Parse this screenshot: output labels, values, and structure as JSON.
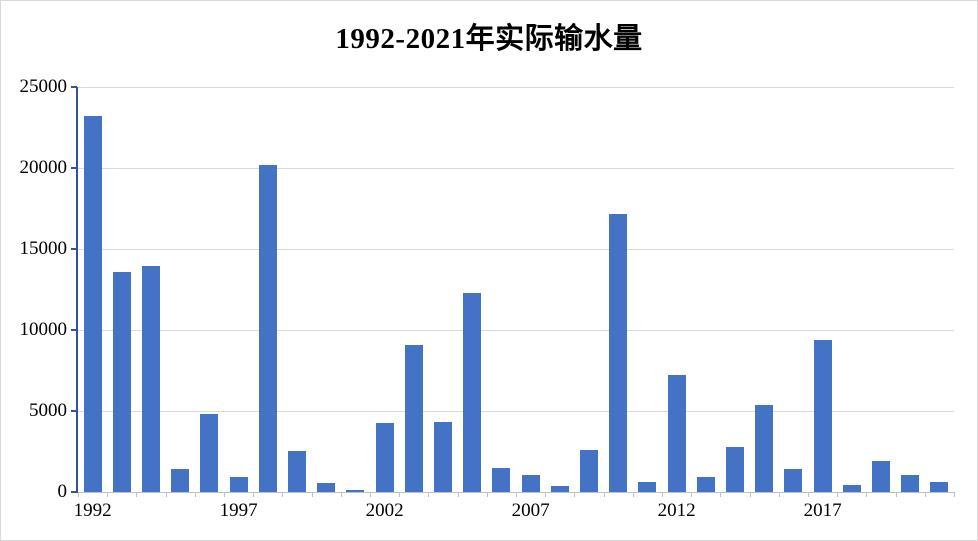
{
  "chart_data": {
    "type": "bar",
    "title": "1992-2021年实际输水量",
    "categories": [
      1992,
      1993,
      1994,
      1995,
      1996,
      1997,
      1998,
      1999,
      2000,
      2001,
      2002,
      2003,
      2004,
      2005,
      2006,
      2007,
      2008,
      2009,
      2010,
      2011,
      2012,
      2013,
      2014,
      2015,
      2016,
      2017,
      2018,
      2019,
      2020,
      2021
    ],
    "values": [
      23200,
      13600,
      13950,
      1400,
      4800,
      950,
      20200,
      2550,
      550,
      150,
      4250,
      9100,
      4300,
      12300,
      1500,
      1050,
      350,
      2600,
      17150,
      600,
      7200,
      950,
      2750,
      5350,
      1400,
      9400,
      450,
      1900,
      1050,
      600
    ],
    "xlabel": "",
    "ylabel": "",
    "ylim": [
      0,
      25000
    ],
    "ytick_interval": 5000,
    "yticks": [
      "0",
      "5000",
      "10000",
      "15000",
      "20000",
      "25000"
    ],
    "x_axis_tick_labels": [
      "1992",
      "1997",
      "2002",
      "2007",
      "2012",
      "2017"
    ],
    "x_label_every": 5,
    "grid": "horizontal",
    "legend_position": "none",
    "colors": {
      "bar": "#4472c4",
      "y_axis": "#2f5597",
      "x_axis": "#bfbfbf",
      "gridline": "#d9d9d9",
      "title_text": "#000000",
      "background": "#ffffff"
    }
  }
}
